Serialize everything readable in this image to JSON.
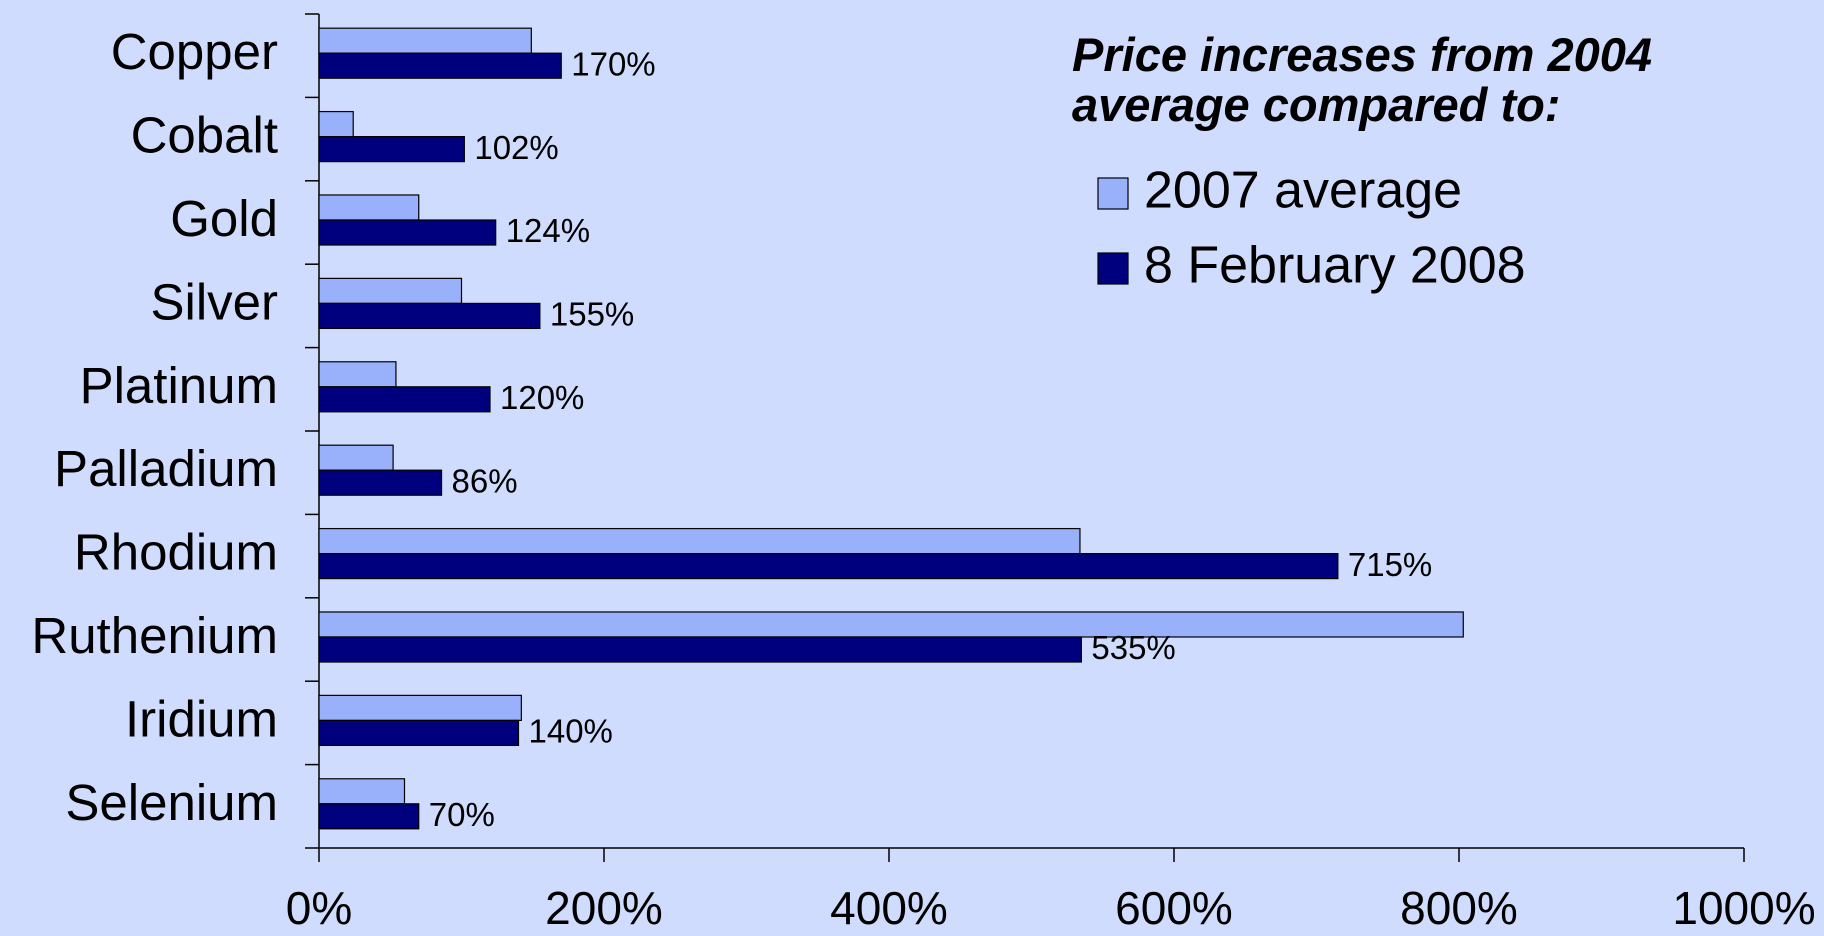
{
  "chart_data": {
    "type": "bar",
    "orientation": "horizontal",
    "legend_title": "Price increases from 2004 average compared to:",
    "categories": [
      "Copper",
      "Cobalt",
      "Gold",
      "Silver",
      "Platinum",
      "Palladium",
      "Rhodium",
      "Ruthenium",
      "Iridium",
      "Selenium"
    ],
    "series": [
      {
        "name": "2007 average",
        "color": "#99b0fb",
        "values": [
          149,
          24,
          70,
          100,
          54,
          52,
          534,
          803,
          142,
          60
        ]
      },
      {
        "name": "8 February 2008",
        "color": "#00007f",
        "values": [
          170,
          102,
          124,
          155,
          120,
          86,
          715,
          535,
          140,
          70
        ],
        "value_labels": [
          "170%",
          "102%",
          "124%",
          "155%",
          "120%",
          "86%",
          "715%",
          "535%",
          "140%",
          "70%"
        ]
      }
    ],
    "xlim": [
      0,
      1000
    ],
    "xticks": [
      {
        "value": 0,
        "label": "0%"
      },
      {
        "value": 200,
        "label": "200%"
      },
      {
        "value": 400,
        "label": "400%"
      },
      {
        "value": 600,
        "label": "600%"
      },
      {
        "value": 800,
        "label": "800%"
      },
      {
        "value": 1000,
        "label": "1000%"
      }
    ],
    "grid": false,
    "legend": "top-right"
  }
}
